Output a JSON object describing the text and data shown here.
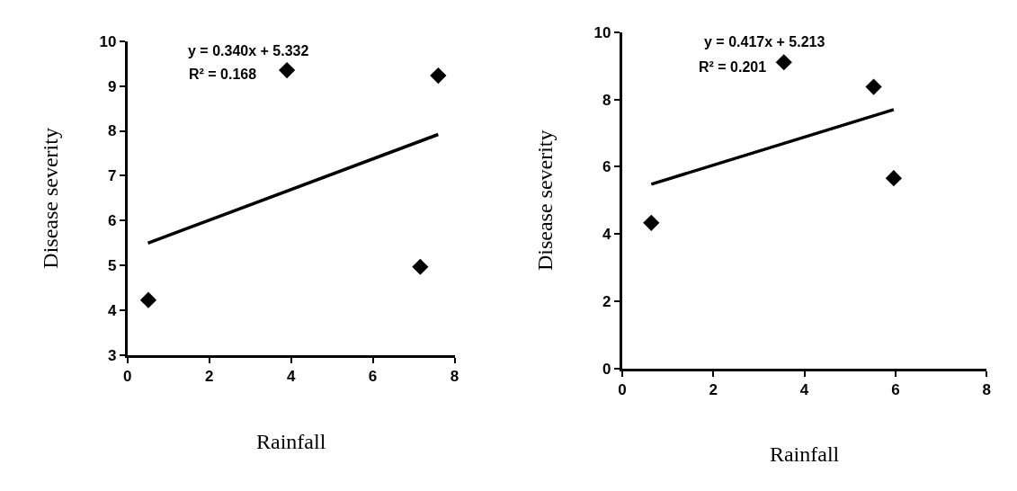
{
  "chart_data": [
    {
      "type": "scatter",
      "xlabel": "Rainfall",
      "ylabel": "Disease severity",
      "xlim": [
        0,
        8
      ],
      "xticks": [
        0,
        2,
        4,
        6,
        8
      ],
      "ylim": [
        3,
        10
      ],
      "yticks": [
        3,
        4,
        5,
        6,
        7,
        8,
        9,
        10
      ],
      "annotations": [
        "y = 0.340x + 5.332",
        "R² = 0.168"
      ],
      "series": [
        {
          "color": "#000000",
          "marker": "diamond",
          "x": [
            0.51,
            3.9,
            7.16,
            7.6
          ],
          "values": [
            4.23,
            9.35,
            4.97,
            9.23
          ]
        },
        {
          "type": "line",
          "color": "#000000",
          "marker": "none",
          "x": [
            0.5,
            7.6
          ],
          "values": [
            5.5,
            7.92
          ]
        }
      ]
    },
    {
      "type": "scatter",
      "xlabel": "Rainfall",
      "ylabel": "Disease severity",
      "xlim": [
        0,
        8
      ],
      "xticks": [
        0,
        2,
        4,
        6,
        8
      ],
      "ylim": [
        0,
        10
      ],
      "yticks": [
        0,
        2,
        4,
        6,
        8,
        10
      ],
      "annotations": [
        "y = 0.417x + 5.213",
        "R² = 0.201"
      ],
      "series": [
        {
          "color": "#000000",
          "marker": "diamond",
          "x": [
            0.64,
            3.55,
            5.52,
            5.96
          ],
          "values": [
            4.33,
            9.11,
            8.38,
            5.66
          ]
        },
        {
          "type": "line",
          "color": "#000000",
          "marker": "none",
          "x": [
            0.64,
            5.96
          ],
          "values": [
            5.48,
            7.7
          ]
        }
      ]
    }
  ]
}
